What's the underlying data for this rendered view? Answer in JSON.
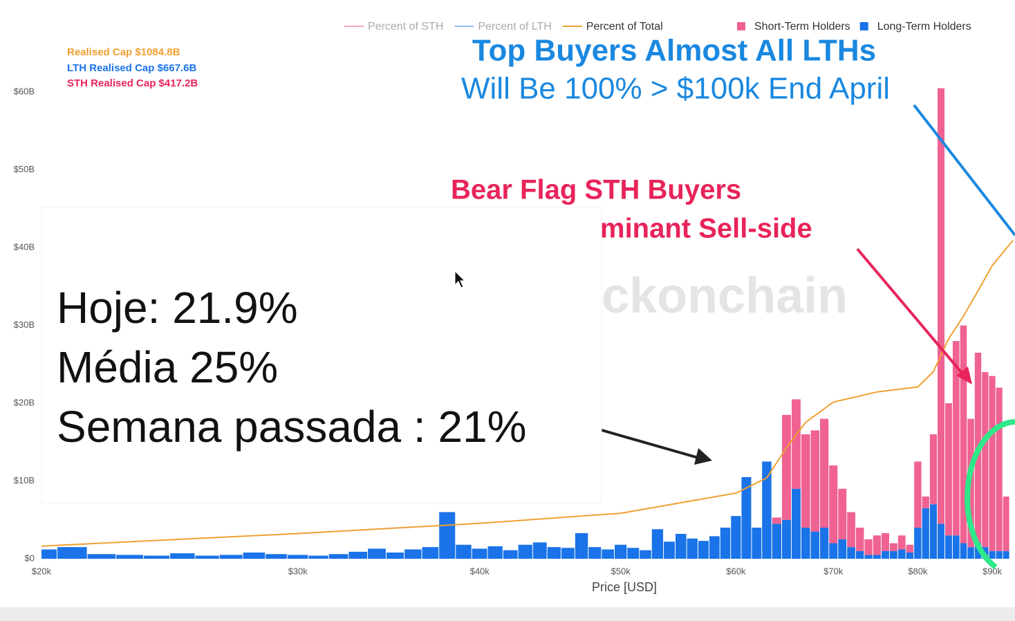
{
  "chart_data": {
    "type": "bar",
    "stacked": true,
    "x_scale": "log",
    "xlabel": "Price [USD]",
    "xlim": [
      20000,
      93300
    ],
    "xticks": [
      {
        "value": 20000,
        "label": "$20k"
      },
      {
        "value": 30000,
        "label": "$30k"
      },
      {
        "value": 40000,
        "label": "$40k"
      },
      {
        "value": 50000,
        "label": "$50k"
      },
      {
        "value": 60000,
        "label": "$60k"
      },
      {
        "value": 70000,
        "label": "$70k"
      },
      {
        "value": 80000,
        "label": "$80k"
      },
      {
        "value": 90000,
        "label": "$90k"
      }
    ],
    "ylim": [
      0,
      65
    ],
    "yticks": [
      {
        "value": 0,
        "label": "$0"
      },
      {
        "value": 10,
        "label": "$10B"
      },
      {
        "value": 20,
        "label": "$20B"
      },
      {
        "value": 30,
        "label": "$30B"
      },
      {
        "value": 40,
        "label": "$40B"
      },
      {
        "value": 50,
        "label": "$50B"
      },
      {
        "value": 60,
        "label": "$60B"
      }
    ],
    "y2lim": [
      0,
      100
    ],
    "bin_width": 1000,
    "x": [
      20000,
      21000,
      22000,
      23000,
      24000,
      25000,
      26000,
      27000,
      28000,
      29000,
      30000,
      31000,
      32000,
      33000,
      34000,
      35000,
      36000,
      37000,
      38000,
      39000,
      40000,
      41000,
      42000,
      43000,
      44000,
      45000,
      46000,
      47000,
      48000,
      49000,
      50000,
      51000,
      52000,
      53000,
      54000,
      55000,
      56000,
      57000,
      58000,
      59000,
      60000,
      61000,
      62000,
      63000,
      64000,
      65000,
      66000,
      67000,
      68000,
      69000,
      70000,
      71000,
      72000,
      73000,
      74000,
      75000,
      76000,
      77000,
      78000,
      79000,
      80000,
      81000,
      82000,
      83000,
      84000,
      85000,
      86000,
      87000,
      88000,
      89000,
      90000,
      91000,
      92000
    ],
    "series": [
      {
        "name": "Long-Term Holders",
        "color": "#1a73e8",
        "values": [
          1.2,
          1.5,
          0.6,
          0.5,
          0.4,
          0.7,
          0.4,
          0.5,
          0.8,
          0.6,
          0.5,
          0.4,
          0.6,
          0.9,
          1.3,
          0.8,
          1.2,
          1.5,
          6,
          1.8,
          1.3,
          1.6,
          1.1,
          1.8,
          2.1,
          1.5,
          1.4,
          3.3,
          1.5,
          1.2,
          1.8,
          1.4,
          1.1,
          3.8,
          2.2,
          3.2,
          2.6,
          2.3,
          2.9,
          4.0,
          5.5,
          10.5,
          4.0,
          12.5,
          4.5,
          5,
          9,
          4,
          3.5,
          4,
          2,
          2.5,
          1.5,
          1,
          0.5,
          0.5,
          1,
          1,
          1.2,
          0.8,
          4,
          6.5,
          7,
          4.5,
          3,
          3,
          2,
          1.5,
          2,
          1.5,
          1,
          1,
          1
        ]
      },
      {
        "name": "Short-Term Holders",
        "color": "#f06292",
        "values": [
          0,
          0,
          0,
          0,
          0,
          0,
          0,
          0,
          0,
          0,
          0,
          0,
          0,
          0,
          0,
          0,
          0,
          0,
          0,
          0,
          0,
          0,
          0,
          0,
          0,
          0,
          0,
          0,
          0,
          0,
          0,
          0,
          0,
          0,
          0,
          0,
          0,
          0,
          0,
          0,
          0,
          0,
          0,
          0,
          0.8,
          13.5,
          11.5,
          12,
          13,
          14,
          10,
          6.5,
          4.5,
          3,
          2,
          2.5,
          2.3,
          1,
          1.8,
          1,
          8.5,
          1.5,
          9,
          56,
          17,
          25,
          28,
          16.5,
          24.5,
          22.5,
          22.5,
          21,
          7
        ]
      }
    ],
    "lines": [
      {
        "name": "Percent of STH",
        "color": "#f4a6b8",
        "hidden": true
      },
      {
        "name": "Percent of LTH",
        "color": "#8fbcef",
        "hidden": true
      },
      {
        "name": "Percent of Total",
        "color": "#f0a030",
        "axis": "y2",
        "x": [
          20000,
          30000,
          40000,
          50000,
          60000,
          63000,
          65000,
          67000,
          70000,
          75000,
          80000,
          82000,
          84000,
          86000,
          88000,
          90000,
          93000
        ],
        "values": [
          2.5,
          5,
          7,
          9,
          13,
          16,
          22,
          27,
          31,
          33,
          34,
          37,
          43.5,
          48,
          53,
          58,
          63
        ]
      }
    ],
    "annotations": {
      "realised_cap": "Realised Cap $1084.8B",
      "lth_realised_cap": "LTH Realised Cap $667.6B",
      "sth_realised_cap": "STH Realised Cap $417.2B",
      "headline_1": "Top Buyers Almost All LTHs",
      "headline_2": "Will Be 100% > $100k End April",
      "bear_flag_1": "Bear Flag STH Buyers",
      "bear_flag_2": "minant Sell-side",
      "watermark": "ckonchain"
    },
    "overlay": [
      "Hoje: 21.9%",
      "Média 25%",
      "Semana passada : 21%"
    ]
  }
}
